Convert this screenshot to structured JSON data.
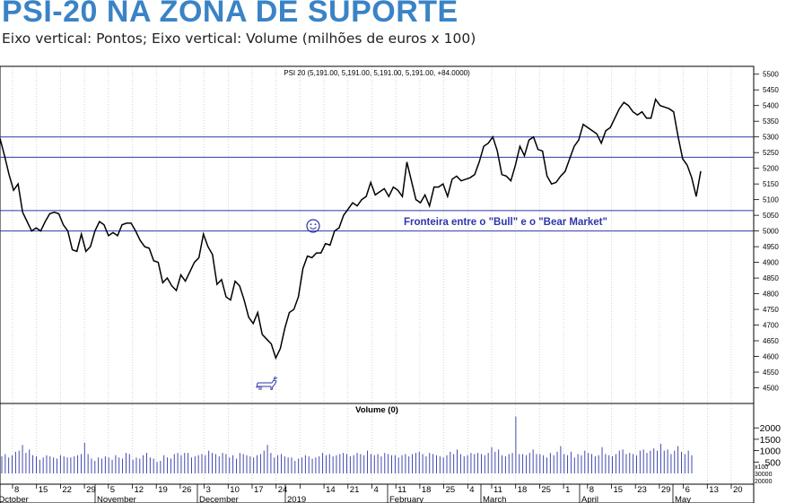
{
  "title": "PSI-20 NA ZONA DE SUPORTE",
  "subtitle": "Eixo vertical: Pontos; Eixo vertical: Volume (milhões de euros x 100)",
  "chart_data": [
    {
      "type": "line",
      "title": "PSI 20 (5,191.00, 5,191.00, 5,191.00, 5,191.00, +84.0000)",
      "annotation": "Fronteira entre o \"Bull\" e o \"Bear Market\"",
      "ylim": [
        4450,
        5525
      ],
      "y_ticks": [
        4500,
        4550,
        4600,
        4650,
        4700,
        4750,
        4800,
        4850,
        4900,
        4950,
        5000,
        5050,
        5100,
        5150,
        5200,
        5250,
        5300,
        5350,
        5400,
        5450,
        5500
      ],
      "y_tick_labels": [
        "4500",
        "4550",
        "4600",
        "4650",
        "4700",
        "4750",
        "4800",
        "4850",
        "4900",
        "4950",
        "5000",
        "5050",
        "5100",
        "5150",
        "5200",
        "5250",
        "5300",
        "5350",
        "5400",
        "5450",
        "5500"
      ],
      "horizontal_lines": [
        5300,
        5235,
        5065,
        5000
      ],
      "x_tick_labels": [
        "8",
        "15",
        "22",
        "29",
        "5",
        "12",
        "19",
        "26",
        "3",
        "10",
        "17",
        "24",
        "",
        "14",
        "21",
        "4",
        "11",
        "18",
        "25",
        "4",
        "11",
        "18",
        "25",
        "1",
        "8",
        "15",
        "23",
        "29",
        "6",
        "13",
        "20"
      ],
      "x_month_labels": [
        "October",
        "November",
        "December",
        "2019",
        "February",
        "March",
        "April",
        "May"
      ],
      "icons": [
        "smiley-icon",
        "bull-icon"
      ],
      "values": [
        5295,
        5240,
        5180,
        5130,
        5150,
        5060,
        5030,
        5000,
        5010,
        5000,
        5030,
        5055,
        5060,
        5055,
        5020,
        5000,
        4940,
        4935,
        4990,
        4935,
        4950,
        5000,
        5030,
        5020,
        4985,
        4995,
        4985,
        5020,
        5025,
        5025,
        5000,
        4970,
        4950,
        4945,
        4905,
        4900,
        4835,
        4850,
        4825,
        4810,
        4860,
        4840,
        4870,
        4900,
        4915,
        4990,
        4950,
        4925,
        4830,
        4845,
        4790,
        4780,
        4840,
        4825,
        4780,
        4725,
        4705,
        4740,
        4670,
        4655,
        4640,
        4595,
        4625,
        4690,
        4740,
        4750,
        4790,
        4880,
        4920,
        4915,
        4930,
        4930,
        4960,
        4955,
        5000,
        5010,
        5050,
        5070,
        5090,
        5080,
        5100,
        5110,
        5155,
        5115,
        5125,
        5135,
        5110,
        5140,
        5130,
        5110,
        5220,
        5160,
        5100,
        5090,
        5115,
        5080,
        5140,
        5140,
        5150,
        5110,
        5165,
        5175,
        5160,
        5165,
        5170,
        5180,
        5220,
        5270,
        5280,
        5300,
        5255,
        5180,
        5175,
        5160,
        5210,
        5270,
        5240,
        5290,
        5300,
        5260,
        5255,
        5175,
        5150,
        5155,
        5175,
        5190,
        5230,
        5270,
        5290,
        5340,
        5330,
        5320,
        5310,
        5280,
        5320,
        5330,
        5360,
        5390,
        5410,
        5400,
        5380,
        5370,
        5380,
        5360,
        5360,
        5420,
        5400,
        5395,
        5390,
        5380,
        5300,
        5230,
        5210,
        5170,
        5110,
        5191
      ]
    },
    {
      "type": "bar",
      "title": "Volume (0)",
      "ylim": [
        0,
        2600
      ],
      "y_ticks": [
        500,
        1000,
        1500,
        2000
      ],
      "y_tick_labels": [
        "500",
        "1000",
        "1500",
        "2000"
      ],
      "scale_labels": [
        "x100",
        "30000",
        "20000"
      ],
      "values": [
        750,
        850,
        700,
        800,
        950,
        1000,
        1250,
        900,
        1050,
        800,
        750,
        600,
        700,
        800,
        750,
        700,
        650,
        800,
        750,
        700,
        700,
        750,
        800,
        850,
        1350,
        850,
        650,
        550,
        700,
        650,
        750,
        700,
        600,
        800,
        700,
        650,
        900,
        850,
        600,
        700,
        650,
        800,
        900,
        700,
        650,
        500,
        550,
        800,
        700,
        650,
        850,
        900,
        800,
        900,
        900,
        700,
        750,
        800,
        850,
        800,
        1000,
        900,
        850,
        750,
        900,
        850,
        700,
        800,
        650,
        900,
        850,
        800,
        750,
        700,
        800,
        850,
        1000,
        1250,
        900,
        700,
        800,
        850,
        750,
        700,
        700,
        550,
        650,
        700,
        800,
        750,
        650,
        700,
        750,
        900,
        800,
        850,
        750,
        800,
        850,
        900,
        850,
        750,
        800,
        900,
        850,
        800,
        1000,
        850,
        800,
        850,
        750,
        900,
        850,
        800,
        800,
        700,
        800,
        850,
        750,
        850,
        900,
        950,
        850,
        750,
        900,
        850,
        800,
        750,
        700,
        800,
        950,
        850,
        1050,
        850,
        750,
        800,
        900,
        850,
        900,
        850,
        800,
        900,
        1150,
        950,
        1050,
        800,
        750,
        850,
        900,
        2500,
        850,
        850,
        800,
        900,
        1050,
        850,
        850,
        800,
        700,
        900,
        800,
        950,
        1200,
        850,
        800,
        950,
        700,
        850,
        800,
        1000,
        900,
        850,
        750,
        800,
        1150,
        850,
        800,
        750,
        850,
        1000,
        1050,
        850,
        900,
        850,
        800,
        1000,
        1050,
        900,
        1000,
        1100,
        1000,
        1300,
        1000,
        1050,
        850,
        1000,
        1200,
        950,
        850,
        1000,
        800
      ]
    }
  ]
}
